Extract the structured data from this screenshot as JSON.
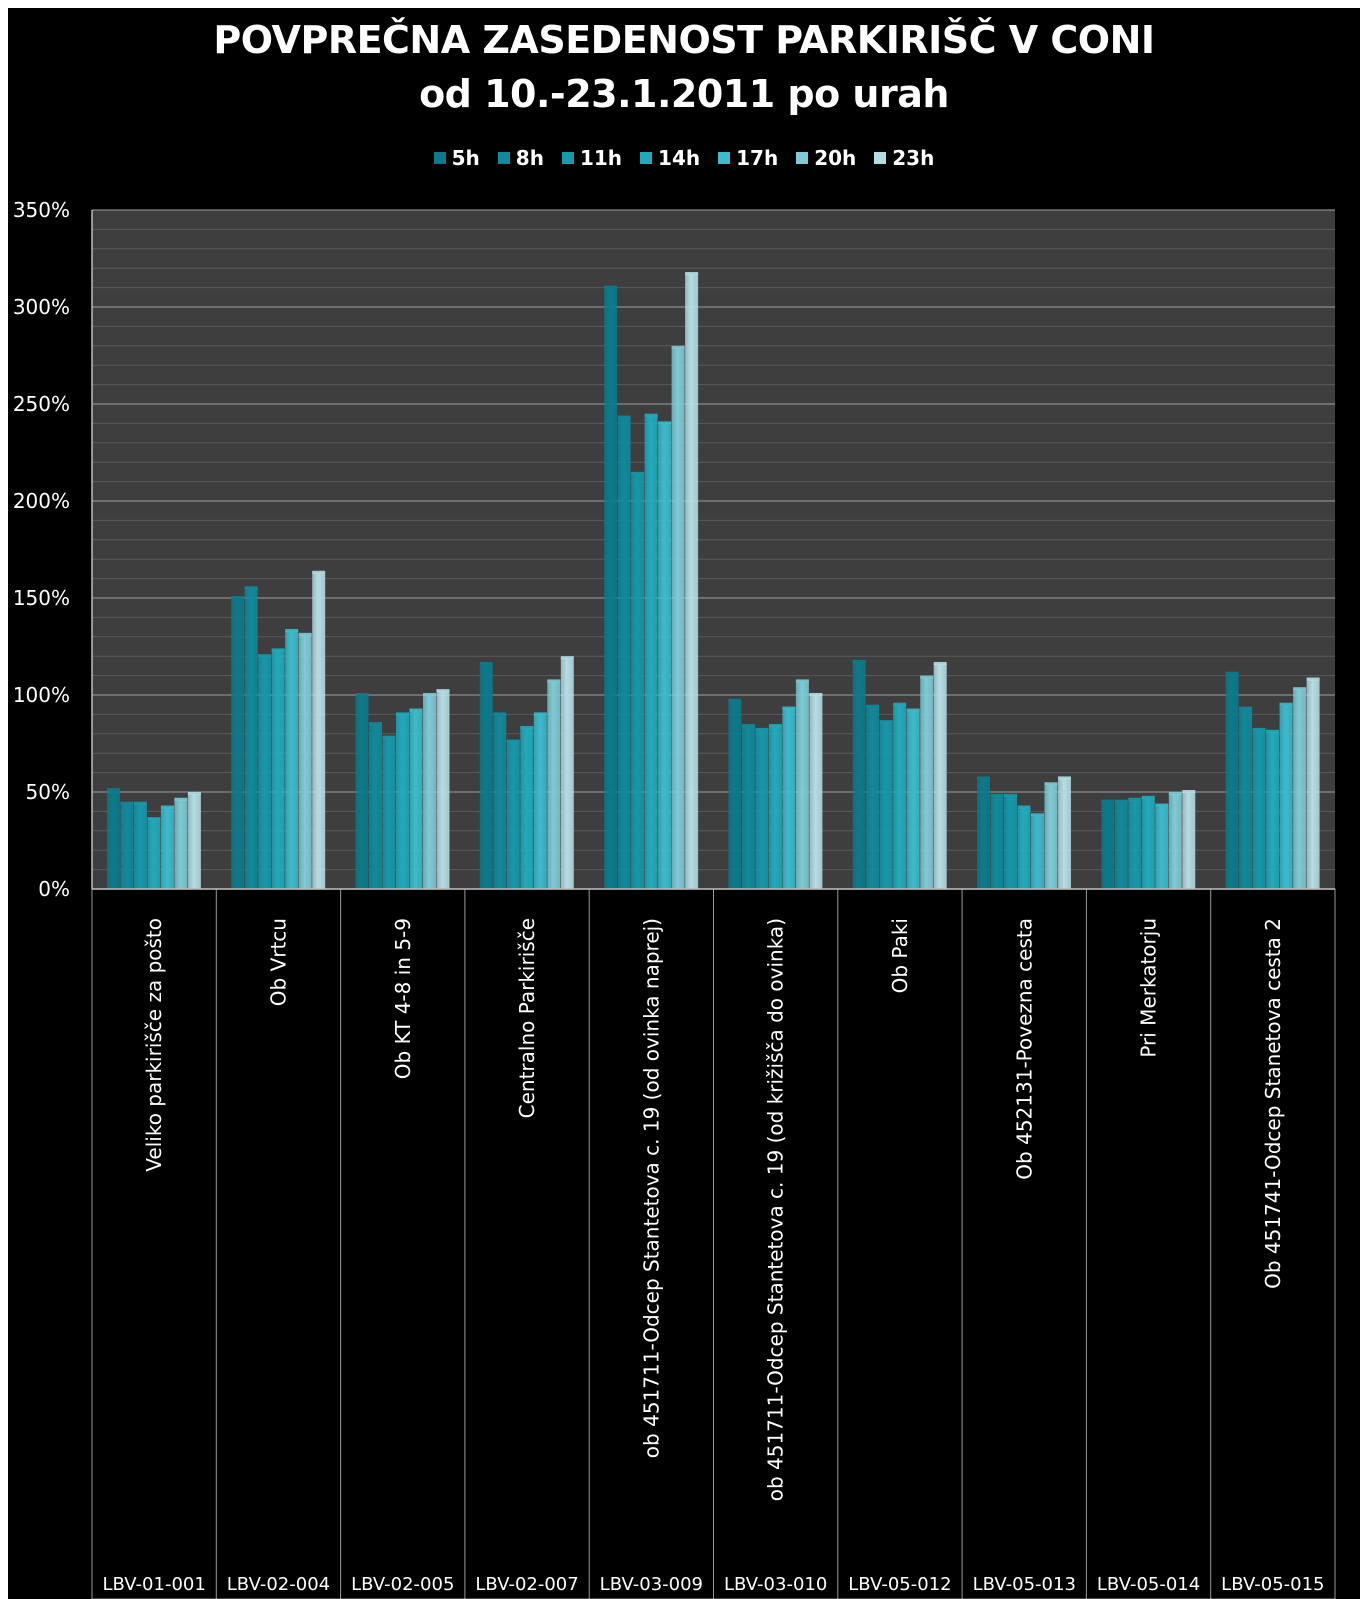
{
  "title_line1": "POVPREČNA ZASEDENOST PARKIRIŠČ V CONI",
  "title_line2": "od 10.-23.1.2011 po urah",
  "chart_data": {
    "type": "bar",
    "title": "POVPREČNA ZASEDENOST PARKIRIŠČ V CONI od 10.-23.1.2011 po urah",
    "xlabel": "",
    "ylabel": "",
    "ylim": [
      0,
      350
    ],
    "yticks": [
      "0%",
      "50%",
      "100%",
      "150%",
      "200%",
      "250%",
      "300%",
      "350%"
    ],
    "grid": true,
    "legend_position": "top",
    "categories": [
      {
        "name": "Veliko parkirišče za pošto",
        "code": "LBV-01-001"
      },
      {
        "name": "Ob Vrtcu",
        "code": "LBV-02-004"
      },
      {
        "name": "Ob KT 4-8 in 5-9",
        "code": "LBV-02-005"
      },
      {
        "name": "Centralno Parkirišče",
        "code": "LBV-02-007"
      },
      {
        "name": "ob 451711-Odcep Stantetova c. 19 (od ovinka naprej)",
        "code": "LBV-03-009"
      },
      {
        "name": "ob 451711-Odcep Stantetova c. 19 (od križišča do ovinka)",
        "code": "LBV-03-010"
      },
      {
        "name": "Ob Paki",
        "code": "LBV-05-012"
      },
      {
        "name": "Ob 452131-Povezna cesta",
        "code": "LBV-05-013"
      },
      {
        "name": "Pri Merkatorju",
        "code": "LBV-05-014"
      },
      {
        "name": "Ob 451741-Odcep Stanetova cesta 2",
        "code": "LBV-05-015"
      }
    ],
    "series": [
      {
        "name": "5h",
        "color": "#0b7b8c",
        "values": [
          51,
          150,
          100,
          116,
          310,
          97,
          117,
          57,
          45,
          111
        ]
      },
      {
        "name": "8h",
        "color": "#0f8a9c",
        "values": [
          44,
          155,
          85,
          90,
          243,
          84,
          94,
          48,
          45,
          93
        ]
      },
      {
        "name": "11h",
        "color": "#1599ab",
        "values": [
          44,
          120,
          78,
          76,
          214,
          82,
          86,
          48,
          46,
          82
        ]
      },
      {
        "name": "14h",
        "color": "#20abbd",
        "values": [
          36,
          123,
          90,
          83,
          244,
          84,
          95,
          42,
          47,
          81
        ]
      },
      {
        "name": "17h",
        "color": "#3bbbcc",
        "values": [
          42,
          133,
          92,
          90,
          240,
          93,
          92,
          38,
          43,
          95
        ]
      },
      {
        "name": "20h",
        "color": "#7ecbd6",
        "values": [
          46,
          131,
          100,
          107,
          279,
          107,
          109,
          54,
          49,
          103
        ]
      },
      {
        "name": "23h",
        "color": "#b5dde4",
        "values": [
          49,
          163,
          102,
          119,
          317,
          100,
          116,
          57,
          50,
          108
        ]
      }
    ]
  }
}
